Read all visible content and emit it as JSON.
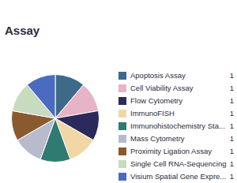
{
  "chart_data": {
    "type": "pie",
    "title": "Assay",
    "categories": [
      "Apoptosis Assay",
      "Cell Viability Assay",
      "Flow Cytometry",
      "ImmunoFISH",
      "Immunohistochemistry Sta...",
      "Mass Cytometry",
      "Proximity Ligation Assay",
      "Single Cell RNA-Sequencing",
      "Visium Spatial Gene Expre..."
    ],
    "values": [
      1,
      1,
      1,
      1,
      1,
      1,
      1,
      1,
      1
    ],
    "colors": [
      "#3e6a8a",
      "#e6b3c7",
      "#2b2a5c",
      "#f1d6a6",
      "#2f7b72",
      "#b8bbcc",
      "#8a5a2e",
      "#c7dbbf",
      "#4a6bbf"
    ],
    "legend": "right"
  }
}
